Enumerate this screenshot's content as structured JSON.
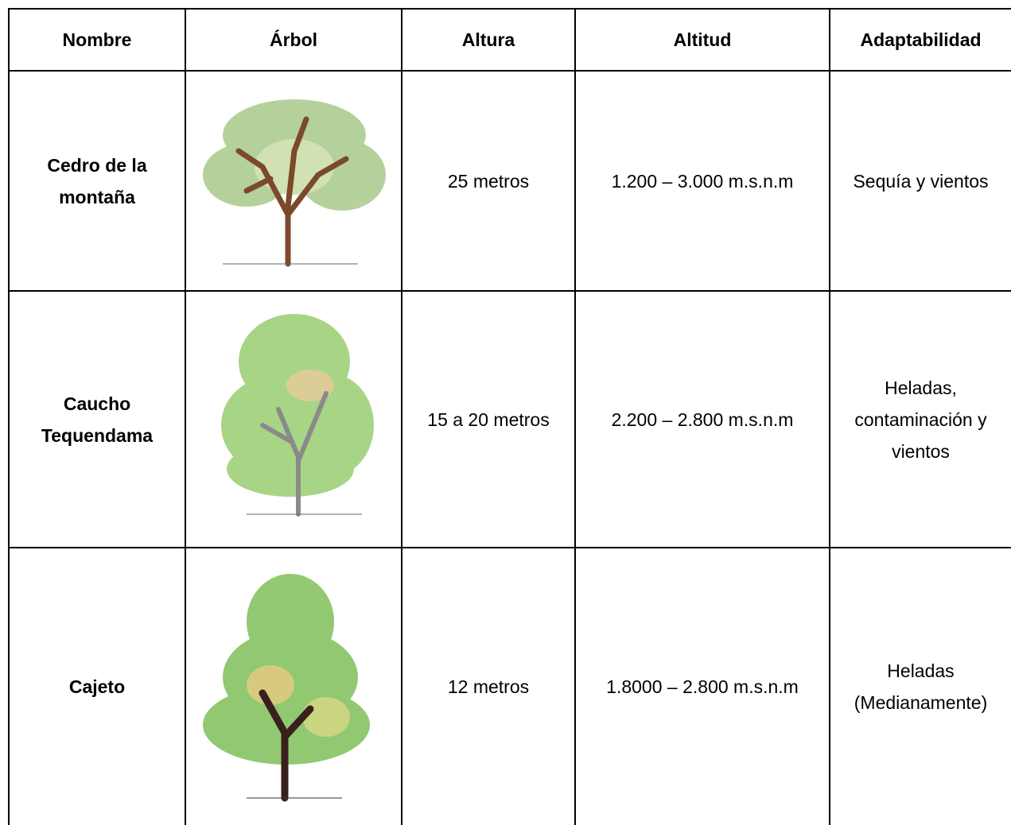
{
  "table": {
    "header": [
      "Nombre",
      "Árbol",
      "Altura",
      "Altitud",
      "Adaptabilidad"
    ],
    "rows": [
      {
        "nombre": "Cedro de la montaña",
        "altura": "25 metros",
        "altitud": "1.200 – 3.000 m.s.n.m",
        "adaptabilidad": "Sequía y vientos"
      },
      {
        "nombre": "Caucho Tequendama",
        "altura": "15 a 20 metros",
        "altitud": "2.200 – 2.800 m.s.n.m",
        "adaptabilidad": "Heladas, contaminación y vientos"
      },
      {
        "nombre": "Cajeto",
        "altura": "12 metros",
        "altitud": "1.8000 – 2.800 m.s.n.m",
        "adaptabilidad": "Heladas (Medianamente)"
      }
    ]
  }
}
